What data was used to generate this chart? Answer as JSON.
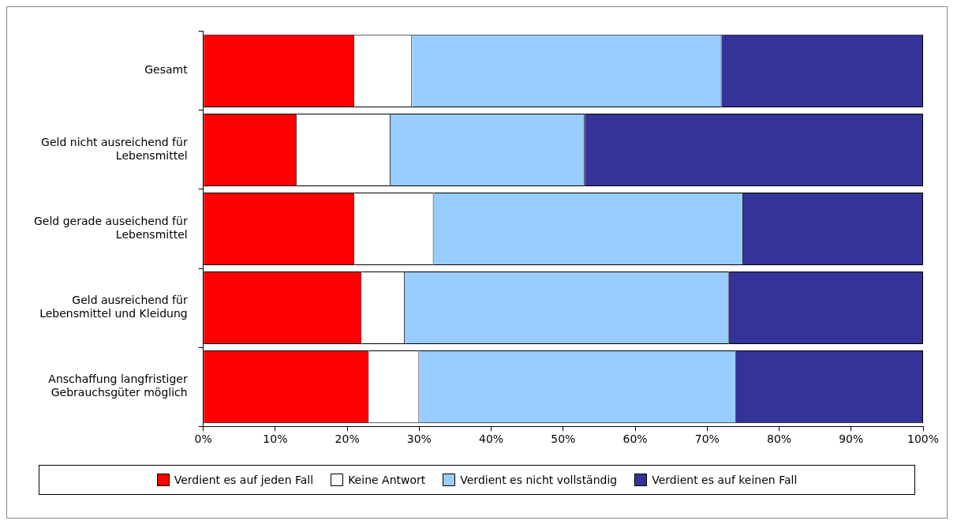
{
  "chart_data": {
    "type": "bar",
    "orientation": "horizontal",
    "stacked": true,
    "categories": [
      "Gesamt",
      "Geld nicht ausreichend für Lebensmittel",
      "Geld gerade auseichend für Lebensmittel",
      "Geld ausreichend für Lebensmittel und Kleidung",
      "Anschaffung langfristiger Gebrauchsgüter möglich"
    ],
    "series": [
      {
        "name": "Verdient es auf jeden Fall",
        "color": "#ff0000",
        "values": [
          21,
          13,
          21,
          22,
          23
        ]
      },
      {
        "name": "Keine Antwort",
        "color": "#ffffff",
        "values": [
          8,
          13,
          11,
          6,
          7
        ]
      },
      {
        "name": "Verdient es nicht vollständig",
        "color": "#99ccff",
        "values": [
          43,
          27,
          43,
          45,
          44
        ]
      },
      {
        "name": "Verdient es auf keinen Fall",
        "color": "#333399",
        "values": [
          28,
          47,
          25,
          27,
          26
        ]
      }
    ],
    "xlim": [
      0,
      100
    ],
    "xticks": [
      {
        "value": 0,
        "label": "0%"
      },
      {
        "value": 10,
        "label": "10%"
      },
      {
        "value": 20,
        "label": "20%"
      },
      {
        "value": 30,
        "label": "30%"
      },
      {
        "value": 40,
        "label": "40%"
      },
      {
        "value": 50,
        "label": "50%"
      },
      {
        "value": 60,
        "label": "60%"
      },
      {
        "value": 70,
        "label": "70%"
      },
      {
        "value": 80,
        "label": "80%"
      },
      {
        "value": 90,
        "label": "90%"
      },
      {
        "value": 100,
        "label": "100%"
      }
    ],
    "grid": false,
    "legend": "bottom"
  }
}
